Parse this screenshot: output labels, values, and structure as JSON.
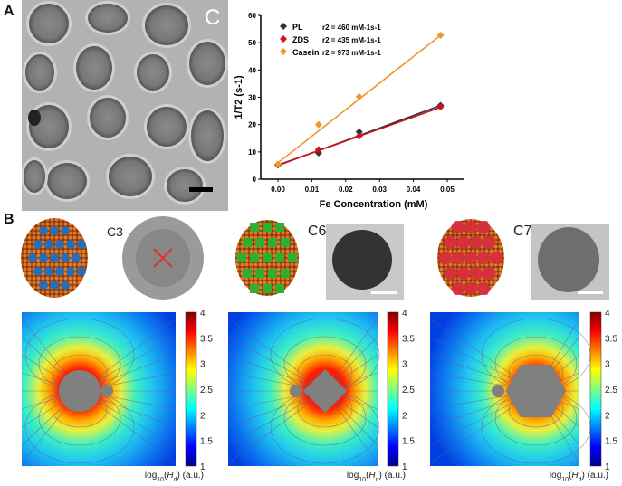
{
  "panels": {
    "a_label": "A",
    "b_label": "B",
    "tem_label": "C"
  },
  "chart_data": {
    "type": "scatter",
    "xlabel": "Fe Concentration (mM)",
    "ylabel": "1/T2 (s-1)",
    "ylabel_main": "1/T",
    "ylabel_sub": "2",
    "ylabel_unit": " (s",
    "ylabel_sup": "-1",
    "ylabel_close": ")",
    "xlim": [
      -0.004,
      0.055
    ],
    "ylim": [
      0,
      60
    ],
    "xticks": [
      "0.00",
      "0.01",
      "0.02",
      "0.03",
      "0.04",
      "0.05"
    ],
    "xtick_values": [
      0,
      0.01,
      0.02,
      0.03,
      0.04,
      0.05
    ],
    "yticks": [
      "0",
      "10",
      "20",
      "30",
      "40",
      "50",
      "60"
    ],
    "ytick_values": [
      0,
      10,
      20,
      30,
      40,
      50,
      60
    ],
    "grid": false,
    "legend_position": "top-left",
    "x": [
      0,
      0.012,
      0.024,
      0.048
    ],
    "series": [
      {
        "name": "PL",
        "r2_label": "r2 = 460 mM-1s-1",
        "r2_value": "460",
        "color": "#333333",
        "values": [
          5.2,
          9.6,
          17.3,
          27.0
        ],
        "fit": [
          5.0,
          27.0
        ]
      },
      {
        "name": "ZDS",
        "r2_label": "r2 = 435 mM-1s-1",
        "r2_value": "435",
        "color": "#d0101e",
        "values": [
          5.3,
          10.8,
          15.8,
          26.5
        ],
        "fit": [
          5.2,
          26.3
        ]
      },
      {
        "name": "Casein",
        "r2_label": "r2 = 973 mM-1s-1",
        "r2_value": "973",
        "color": "#f0962a",
        "values": [
          5.5,
          20.0,
          30.2,
          52.7
        ],
        "fit": [
          6.0,
          52.7
        ]
      }
    ]
  },
  "models": [
    {
      "label": "C3",
      "dot_color": "#2a6db5"
    },
    {
      "label": "C6",
      "dot_color": "#2fae2f"
    },
    {
      "label": "C7",
      "dot_color": "#d6303a"
    }
  ],
  "field_maps": [
    {
      "shape": "circle"
    },
    {
      "shape": "diamond"
    },
    {
      "shape": "hexagon"
    }
  ],
  "colorbar": {
    "ticks": [
      "1",
      "1.5",
      "2",
      "2.5",
      "3",
      "3.5",
      "4"
    ],
    "range": [
      1,
      4
    ],
    "label_pre": "log",
    "label_sub": "10",
    "label_var": "H",
    "label_var_sub": "d",
    "label_post": ") (a.u.)",
    "label_open": "(",
    "colormap": "jet"
  }
}
